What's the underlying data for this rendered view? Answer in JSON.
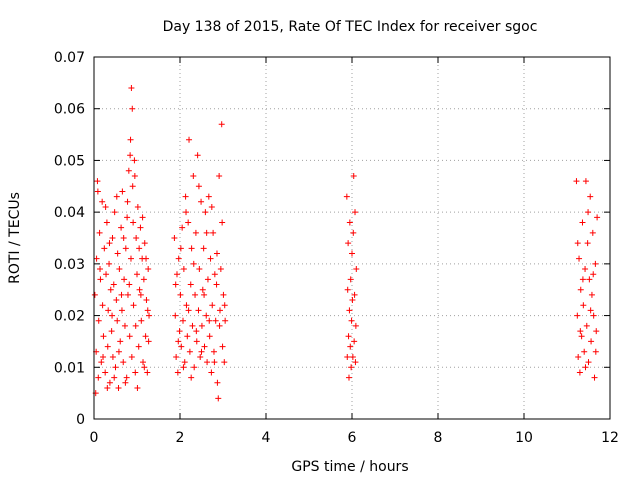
{
  "chart_data": {
    "type": "scatter",
    "title": "Day 138 of 2015, Rate Of TEC Index for receiver sgoc",
    "xlabel": "GPS time / hours",
    "ylabel": "ROTI / TECUs",
    "xlim": [
      0,
      12
    ],
    "ylim": [
      0,
      0.07
    ],
    "x_ticks": [
      "0",
      "2",
      "4",
      "6",
      "8",
      "10",
      "12"
    ],
    "y_ticks": [
      "0",
      "0.01",
      "0.02",
      "0.03",
      "0.04",
      "0.05",
      "0.06",
      "0.07"
    ],
    "grid": true,
    "marker": "+",
    "color": "#ff0000",
    "series": [
      {
        "points": [
          [
            0.02,
            0.024
          ],
          [
            0.05,
            0.013
          ],
          [
            0.06,
            0.031
          ],
          [
            0.08,
            0.046
          ],
          [
            0.1,
            0.008
          ],
          [
            0.11,
            0.019
          ],
          [
            0.13,
            0.036
          ],
          [
            0.15,
            0.027
          ],
          [
            0.17,
            0.011
          ],
          [
            0.19,
            0.042
          ],
          [
            0.2,
            0.022
          ],
          [
            0.22,
            0.016
          ],
          [
            0.24,
            0.033
          ],
          [
            0.26,
            0.009
          ],
          [
            0.28,
            0.028
          ],
          [
            0.3,
            0.038
          ],
          [
            0.32,
            0.014
          ],
          [
            0.33,
            0.021
          ],
          [
            0.35,
            0.03
          ],
          [
            0.37,
            0.007
          ],
          [
            0.39,
            0.025
          ],
          [
            0.41,
            0.017
          ],
          [
            0.43,
            0.035
          ],
          [
            0.44,
            0.012
          ],
          [
            0.46,
            0.026
          ],
          [
            0.48,
            0.04
          ],
          [
            0.5,
            0.01
          ],
          [
            0.52,
            0.023
          ],
          [
            0.54,
            0.019
          ],
          [
            0.55,
            0.032
          ],
          [
            0.57,
            0.006
          ],
          [
            0.59,
            0.029
          ],
          [
            0.61,
            0.015
          ],
          [
            0.63,
            0.037
          ],
          [
            0.65,
            0.021
          ],
          [
            0.66,
            0.044
          ],
          [
            0.68,
            0.011
          ],
          [
            0.7,
            0.027
          ],
          [
            0.72,
            0.018
          ],
          [
            0.74,
            0.033
          ],
          [
            0.76,
            0.008
          ],
          [
            0.77,
            0.039
          ],
          [
            0.79,
            0.024
          ],
          [
            0.81,
            0.048
          ],
          [
            0.83,
            0.016
          ],
          [
            0.85,
            0.054
          ],
          [
            0.86,
            0.031
          ],
          [
            0.87,
            0.064
          ],
          [
            0.88,
            0.012
          ],
          [
            0.89,
            0.06
          ],
          [
            0.9,
            0.045
          ],
          [
            0.92,
            0.022
          ],
          [
            0.94,
            0.05
          ],
          [
            0.96,
            0.009
          ],
          [
            0.98,
            0.035
          ],
          [
            1.0,
            0.028
          ],
          [
            1.02,
            0.041
          ],
          [
            1.04,
            0.014
          ],
          [
            1.06,
            0.025
          ],
          [
            1.08,
            0.037
          ],
          [
            1.1,
            0.019
          ],
          [
            1.12,
            0.031
          ],
          [
            1.14,
            0.011
          ],
          [
            1.16,
            0.027
          ],
          [
            1.18,
            0.034
          ],
          [
            1.2,
            0.016
          ],
          [
            1.22,
            0.023
          ],
          [
            1.24,
            0.009
          ],
          [
            1.26,
            0.029
          ],
          [
            1.28,
            0.02
          ],
          [
            0.04,
            0.005
          ],
          [
            0.09,
            0.044
          ],
          [
            0.14,
            0.029
          ],
          [
            0.21,
            0.012
          ],
          [
            0.27,
            0.041
          ],
          [
            0.31,
            0.006
          ],
          [
            0.36,
            0.034
          ],
          [
            0.42,
            0.02
          ],
          [
            0.47,
            0.008
          ],
          [
            0.53,
            0.043
          ],
          [
            0.58,
            0.013
          ],
          [
            0.64,
            0.024
          ],
          [
            0.69,
            0.035
          ],
          [
            0.73,
            0.007
          ],
          [
            0.78,
            0.042
          ],
          [
            0.82,
            0.026
          ],
          [
            0.84,
            0.051
          ],
          [
            0.91,
            0.038
          ],
          [
            0.95,
            0.047
          ],
          [
            0.97,
            0.018
          ],
          [
            1.01,
            0.006
          ],
          [
            1.05,
            0.033
          ],
          [
            1.09,
            0.024
          ],
          [
            1.13,
            0.039
          ],
          [
            1.17,
            0.01
          ],
          [
            1.21,
            0.031
          ],
          [
            1.25,
            0.021
          ],
          [
            1.27,
            0.015
          ],
          [
            1.87,
            0.035
          ],
          [
            1.89,
            0.02
          ],
          [
            1.91,
            0.012
          ],
          [
            1.93,
            0.028
          ],
          [
            1.95,
            0.009
          ],
          [
            1.97,
            0.031
          ],
          [
            1.99,
            0.017
          ],
          [
            2.01,
            0.024
          ],
          [
            2.03,
            0.014
          ],
          [
            2.05,
            0.037
          ],
          [
            2.07,
            0.019
          ],
          [
            2.09,
            0.029
          ],
          [
            2.11,
            0.011
          ],
          [
            2.13,
            0.043
          ],
          [
            2.15,
            0.022
          ],
          [
            2.17,
            0.016
          ],
          [
            2.19,
            0.038
          ],
          [
            2.21,
            0.054
          ],
          [
            2.23,
            0.013
          ],
          [
            2.25,
            0.026
          ],
          [
            2.27,
            0.033
          ],
          [
            2.29,
            0.018
          ],
          [
            2.31,
            0.047
          ],
          [
            2.33,
            0.01
          ],
          [
            2.35,
            0.024
          ],
          [
            2.37,
            0.036
          ],
          [
            2.39,
            0.015
          ],
          [
            2.41,
            0.051
          ],
          [
            2.43,
            0.021
          ],
          [
            2.45,
            0.029
          ],
          [
            2.47,
            0.012
          ],
          [
            2.49,
            0.042
          ],
          [
            2.51,
            0.018
          ],
          [
            2.53,
            0.025
          ],
          [
            2.55,
            0.033
          ],
          [
            2.57,
            0.014
          ],
          [
            2.59,
            0.04
          ],
          [
            2.61,
            0.02
          ],
          [
            2.63,
            0.011
          ],
          [
            2.65,
            0.027
          ],
          [
            2.67,
            0.043
          ],
          [
            2.69,
            0.016
          ],
          [
            2.71,
            0.031
          ],
          [
            2.73,
            0.009
          ],
          [
            2.75,
            0.022
          ],
          [
            2.77,
            0.036
          ],
          [
            2.79,
            0.013
          ],
          [
            2.81,
            0.028
          ],
          [
            2.83,
            0.019
          ],
          [
            2.85,
            0.026
          ],
          [
            2.87,
            0.007
          ],
          [
            2.89,
            0.004
          ],
          [
            2.91,
            0.047
          ],
          [
            2.93,
            0.021
          ],
          [
            2.95,
            0.029
          ],
          [
            2.97,
            0.057
          ],
          [
            2.99,
            0.014
          ],
          [
            3.01,
            0.024
          ],
          [
            3.03,
            0.011
          ],
          [
            3.05,
            0.019
          ],
          [
            1.9,
            0.026
          ],
          [
            1.96,
            0.015
          ],
          [
            2.02,
            0.033
          ],
          [
            2.08,
            0.01
          ],
          [
            2.14,
            0.04
          ],
          [
            2.2,
            0.021
          ],
          [
            2.26,
            0.008
          ],
          [
            2.32,
            0.03
          ],
          [
            2.38,
            0.017
          ],
          [
            2.44,
            0.045
          ],
          [
            2.5,
            0.013
          ],
          [
            2.56,
            0.024
          ],
          [
            2.62,
            0.036
          ],
          [
            2.68,
            0.019
          ],
          [
            2.74,
            0.041
          ],
          [
            2.8,
            0.011
          ],
          [
            2.86,
            0.032
          ],
          [
            2.92,
            0.018
          ],
          [
            2.98,
            0.038
          ],
          [
            3.04,
            0.022
          ],
          [
            5.88,
            0.043
          ],
          [
            5.89,
            0.012
          ],
          [
            5.9,
            0.025
          ],
          [
            5.91,
            0.034
          ],
          [
            5.92,
            0.016
          ],
          [
            5.93,
            0.008
          ],
          [
            5.94,
            0.021
          ],
          [
            5.95,
            0.038
          ],
          [
            5.96,
            0.014
          ],
          [
            5.97,
            0.027
          ],
          [
            5.98,
            0.01
          ],
          [
            5.99,
            0.019
          ],
          [
            6.0,
            0.032
          ],
          [
            6.01,
            0.023
          ],
          [
            6.02,
            0.012
          ],
          [
            6.03,
            0.036
          ],
          [
            6.04,
            0.047
          ],
          [
            6.05,
            0.015
          ],
          [
            6.06,
            0.024
          ],
          [
            6.07,
            0.04
          ],
          [
            6.08,
            0.011
          ],
          [
            6.09,
            0.018
          ],
          [
            6.1,
            0.029
          ],
          [
            11.22,
            0.046
          ],
          [
            11.24,
            0.02
          ],
          [
            11.26,
            0.012
          ],
          [
            11.28,
            0.031
          ],
          [
            11.3,
            0.009
          ],
          [
            11.32,
            0.025
          ],
          [
            11.34,
            0.016
          ],
          [
            11.36,
            0.038
          ],
          [
            11.38,
            0.022
          ],
          [
            11.4,
            0.013
          ],
          [
            11.42,
            0.029
          ],
          [
            11.44,
            0.046
          ],
          [
            11.46,
            0.018
          ],
          [
            11.48,
            0.034
          ],
          [
            11.5,
            0.011
          ],
          [
            11.52,
            0.027
          ],
          [
            11.54,
            0.043
          ],
          [
            11.56,
            0.015
          ],
          [
            11.58,
            0.024
          ],
          [
            11.6,
            0.036
          ],
          [
            11.62,
            0.02
          ],
          [
            11.64,
            0.008
          ],
          [
            11.66,
            0.03
          ],
          [
            11.68,
            0.017
          ],
          [
            11.7,
            0.039
          ],
          [
            11.25,
            0.034
          ],
          [
            11.31,
            0.017
          ],
          [
            11.37,
            0.027
          ],
          [
            11.43,
            0.01
          ],
          [
            11.49,
            0.04
          ],
          [
            11.55,
            0.021
          ],
          [
            11.61,
            0.028
          ],
          [
            11.67,
            0.013
          ]
        ]
      }
    ]
  }
}
